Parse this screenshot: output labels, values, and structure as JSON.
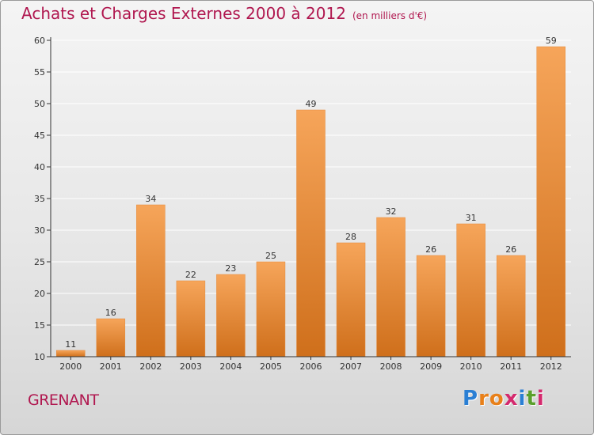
{
  "header": {
    "title": "Achats et Charges Externes 2000 à 2012",
    "unit": "(en milliers d'€)"
  },
  "footer": {
    "place": "GRENANT",
    "logo": "Proxiti",
    "logo_colors": [
      "#2a7fd4",
      "#e8801a",
      "#e8801a",
      "#d42a6e",
      "#2a7fd4",
      "#5aa02c",
      "#d42a6e"
    ]
  },
  "colors": {
    "bar_top": "#f6a55a",
    "bar_bottom": "#cf6f1b",
    "axis": "#333333",
    "grid": "#ffffff",
    "title": "#b0174f"
  },
  "chart_data": {
    "type": "bar",
    "title": "Achats et Charges Externes 2000 à 2012",
    "xlabel": "",
    "ylabel": "",
    "categories": [
      "2000",
      "2001",
      "2002",
      "2003",
      "2004",
      "2005",
      "2006",
      "2007",
      "2008",
      "2009",
      "2010",
      "2011",
      "2012"
    ],
    "values": [
      11,
      16,
      34,
      22,
      23,
      25,
      49,
      28,
      32,
      26,
      31,
      26,
      59
    ],
    "ylim": [
      10,
      60
    ],
    "yticks": [
      10,
      15,
      20,
      25,
      30,
      35,
      40,
      45,
      50,
      55,
      60
    ],
    "grid": true,
    "data_labels": true
  }
}
